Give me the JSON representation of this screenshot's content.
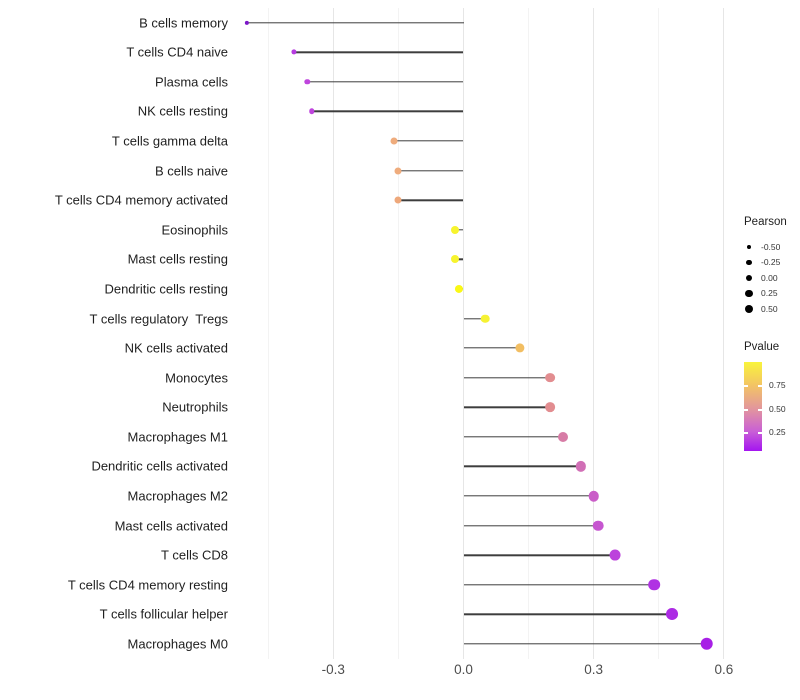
{
  "chart_data": {
    "type": "scatter",
    "variant": "lollipop",
    "title": "",
    "xlabel": "",
    "ylabel": "",
    "xlim": [
      -0.55,
      0.63
    ],
    "grid": "vertical gridlines on, major + faint minor",
    "x_major_tick_values": [
      -0.3,
      0.0,
      0.3,
      0.6
    ],
    "x_major_tick_labels": [
      "-0.3",
      "0.0",
      "0.3",
      "0.6"
    ],
    "x_minor_tick_values": [
      -0.45,
      -0.15,
      0.15,
      0.45
    ],
    "baseline_value": 0.0,
    "legend_position": "right",
    "items": [
      {
        "label": "B cells memory",
        "pearson": -0.5,
        "color": "#7C16C8"
      },
      {
        "label": "T cells CD4 naive",
        "pearson": -0.39,
        "color": "#B63CE0"
      },
      {
        "label": "Plasma cells",
        "pearson": -0.36,
        "color": "#BF45DD"
      },
      {
        "label": "NK cells resting",
        "pearson": -0.35,
        "color": "#BF45DD"
      },
      {
        "label": "T cells gamma delta",
        "pearson": -0.16,
        "color": "#EFAC7D"
      },
      {
        "label": "B cells naive",
        "pearson": -0.15,
        "color": "#EFAC7D"
      },
      {
        "label": "T cells CD4 memory activated",
        "pearson": -0.15,
        "color": "#EEA87B"
      },
      {
        "label": "Eosinophils",
        "pearson": -0.02,
        "color": "#F7F42E"
      },
      {
        "label": "Mast cells resting",
        "pearson": -0.02,
        "color": "#F7F42E"
      },
      {
        "label": "Dendritic cells resting",
        "pearson": -0.01,
        "color": "#FAF816"
      },
      {
        "label": "T cells regulatory  Tregs",
        "pearson": 0.05,
        "color": "#F6F233"
      },
      {
        "label": "NK cells activated",
        "pearson": 0.13,
        "color": "#F2BE62"
      },
      {
        "label": "Monocytes",
        "pearson": 0.2,
        "color": "#E28D90"
      },
      {
        "label": "Neutrophils",
        "pearson": 0.2,
        "color": "#E28D90"
      },
      {
        "label": "Macrophages M1",
        "pearson": 0.23,
        "color": "#D77CA6"
      },
      {
        "label": "Dendritic cells activated",
        "pearson": 0.27,
        "color": "#D16FB6"
      },
      {
        "label": "Macrophages M2",
        "pearson": 0.3,
        "color": "#CA5DC8"
      },
      {
        "label": "Mast cells activated",
        "pearson": 0.31,
        "color": "#C656D0"
      },
      {
        "label": "T cells CD8",
        "pearson": 0.35,
        "color": "#BC42DC"
      },
      {
        "label": "T cells CD4 memory resting",
        "pearson": 0.44,
        "color": "#B032E3"
      },
      {
        "label": "T cells follicular helper",
        "pearson": 0.48,
        "color": "#AC2BE4"
      },
      {
        "label": "Macrophages M0",
        "pearson": 0.56,
        "color": "#A820E6"
      }
    ]
  },
  "legends": {
    "pearson": {
      "title": "Pearson",
      "items": [
        {
          "label": "-0.50",
          "value": -0.5
        },
        {
          "label": "-0.25",
          "value": -0.25
        },
        {
          "label": "0.00",
          "value": 0.0
        },
        {
          "label": "0.25",
          "value": 0.25
        },
        {
          "label": "0.50",
          "value": 0.5
        }
      ],
      "dot_color": "#000000"
    },
    "pvalue": {
      "title": "Pvalue",
      "tick_labels": [
        "0.75",
        "0.50",
        "0.25"
      ],
      "gradient_stops": [
        "#F9F43B",
        "#F3C464",
        "#E2959E",
        "#C95FD6",
        "#A415F0"
      ],
      "gradient_direction": "yellow (high p) at top to purple (low p) at bottom"
    }
  },
  "style_colors": {
    "stem": "#3d3d3d",
    "gridline_major": "#e6e6e6",
    "gridline_minor": "#f3f3f3",
    "axis_text": "#4d4d4d",
    "category_text": "#1f1f1f",
    "background": "#ffffff"
  }
}
